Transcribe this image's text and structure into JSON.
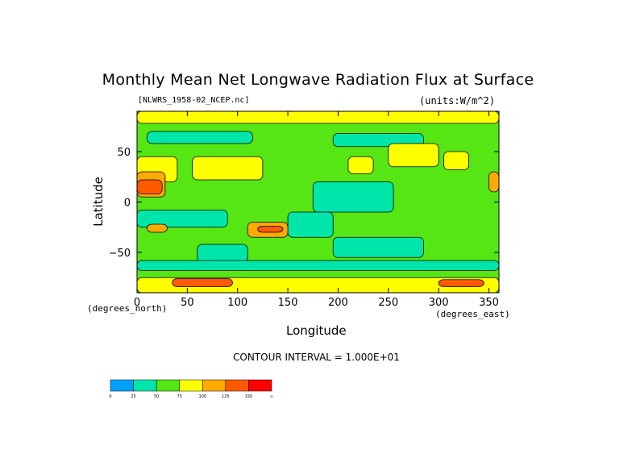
{
  "chart_data": {
    "type": "heatmap",
    "title": "Monthly Mean Net Longwave Radiation Flux at Surface",
    "file_label": "[NLWRS_1958-02_NCEP.nc]",
    "units_label": "(units:W/m^2)",
    "xlabel": "Longitude",
    "ylabel": "Latitude",
    "x_unit_label": "(degrees_east)",
    "y_unit_label": "(degrees_north)",
    "contour_interval_label": "CONTOUR INTERVAL = 1.000E+01",
    "xlim": [
      0,
      360
    ],
    "ylim": [
      -90,
      90
    ],
    "x_ticks": [
      0,
      50,
      100,
      150,
      200,
      250,
      300,
      350
    ],
    "y_ticks": [
      50,
      0,
      -50
    ],
    "x_tick_labels": [
      "0",
      "50",
      "100",
      "150",
      "200",
      "250",
      "300",
      "350"
    ],
    "y_tick_labels": [
      "50",
      "0",
      "−50"
    ],
    "background_level": 50,
    "colorbar": {
      "bins": [
        {
          "color": "#00a0ff"
        },
        {
          "color": "#00e6aa"
        },
        {
          "color": "#55e614"
        },
        {
          "color": "#ffff00"
        },
        {
          "color": "#ffaa00"
        },
        {
          "color": "#ff5a00"
        },
        {
          "color": "#ff0000"
        }
      ],
      "tick_labels": [
        "0",
        "25",
        "50",
        "75",
        "100",
        "125",
        "150",
        "∞"
      ]
    },
    "regions": [
      {
        "lon": [
          175,
          255
        ],
        "lat": [
          -10,
          20
        ],
        "level": 25
      },
      {
        "lon": [
          150,
          195
        ],
        "lat": [
          -35,
          -10
        ],
        "level": 25
      },
      {
        "lon": [
          0,
          90
        ],
        "lat": [
          -25,
          -8
        ],
        "level": 25
      },
      {
        "lon": [
          60,
          110
        ],
        "lat": [
          -60,
          -42
        ],
        "level": 25
      },
      {
        "lon": [
          195,
          285
        ],
        "lat": [
          -55,
          -35
        ],
        "level": 25
      },
      {
        "lon": [
          0,
          360
        ],
        "lat": [
          -68,
          -58
        ],
        "level": 25
      },
      {
        "lon": [
          10,
          115
        ],
        "lat": [
          58,
          70
        ],
        "level": 25
      },
      {
        "lon": [
          195,
          285
        ],
        "lat": [
          55,
          68
        ],
        "level": 25
      },
      {
        "lon": [
          0,
          40
        ],
        "lat": [
          20,
          45
        ],
        "level": 75
      },
      {
        "lon": [
          55,
          125
        ],
        "lat": [
          22,
          45
        ],
        "level": 75
      },
      {
        "lon": [
          210,
          235
        ],
        "lat": [
          28,
          45
        ],
        "level": 75
      },
      {
        "lon": [
          250,
          300
        ],
        "lat": [
          35,
          58
        ],
        "level": 75
      },
      {
        "lon": [
          305,
          330
        ],
        "lat": [
          32,
          50
        ],
        "level": 75
      },
      {
        "lon": [
          0,
          360
        ],
        "lat": [
          -90,
          -75
        ],
        "level": 75
      },
      {
        "lon": [
          0,
          360
        ],
        "lat": [
          78,
          90
        ],
        "level": 75
      },
      {
        "lon": [
          0,
          28
        ],
        "lat": [
          5,
          30
        ],
        "level": 100
      },
      {
        "lon": [
          110,
          150
        ],
        "lat": [
          -35,
          -20
        ],
        "level": 100
      },
      {
        "lon": [
          350,
          360
        ],
        "lat": [
          10,
          30
        ],
        "level": 100
      },
      {
        "lon": [
          10,
          30
        ],
        "lat": [
          -30,
          -22
        ],
        "level": 100
      },
      {
        "lon": [
          0,
          25
        ],
        "lat": [
          8,
          22
        ],
        "level": 125
      },
      {
        "lon": [
          120,
          145
        ],
        "lat": [
          -30,
          -24
        ],
        "level": 125
      },
      {
        "lon": [
          35,
          95
        ],
        "lat": [
          -84,
          -76
        ],
        "level": 125
      },
      {
        "lon": [
          300,
          345
        ],
        "lat": [
          -84,
          -77
        ],
        "level": 125
      }
    ]
  }
}
